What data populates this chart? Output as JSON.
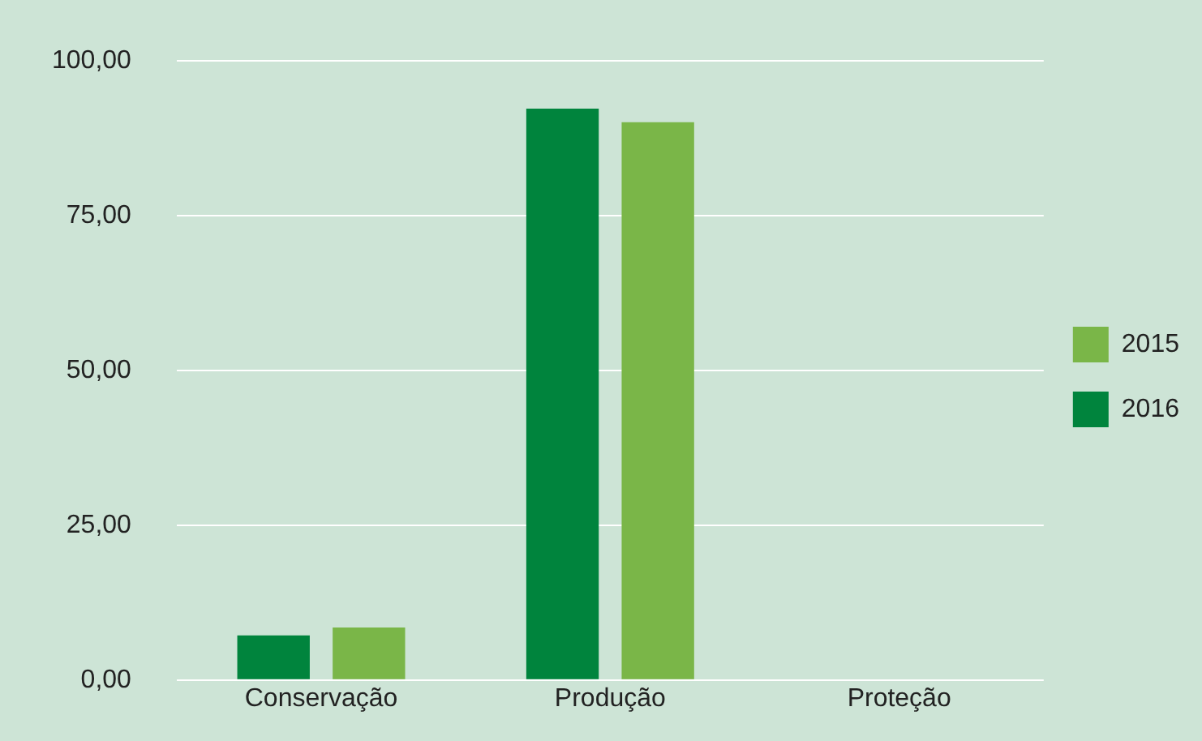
{
  "chart_data": {
    "type": "bar",
    "categories": [
      "Conservação",
      "Produção",
      "Proteção"
    ],
    "series": [
      {
        "name": "2016",
        "color": "#00843d",
        "values": [
          7.2,
          92.3,
          0
        ]
      },
      {
        "name": "2015",
        "color": "#7ab648",
        "values": [
          8.5,
          90.1,
          0
        ]
      }
    ],
    "ylim": [
      0,
      100
    ],
    "yticks": [
      {
        "value": 0,
        "label": "0,00"
      },
      {
        "value": 25,
        "label": "25,00"
      },
      {
        "value": 50,
        "label": "50,00"
      },
      {
        "value": 75,
        "label": "75,00"
      },
      {
        "value": 100,
        "label": "100,00"
      }
    ],
    "grid": "y",
    "legend": "right"
  }
}
